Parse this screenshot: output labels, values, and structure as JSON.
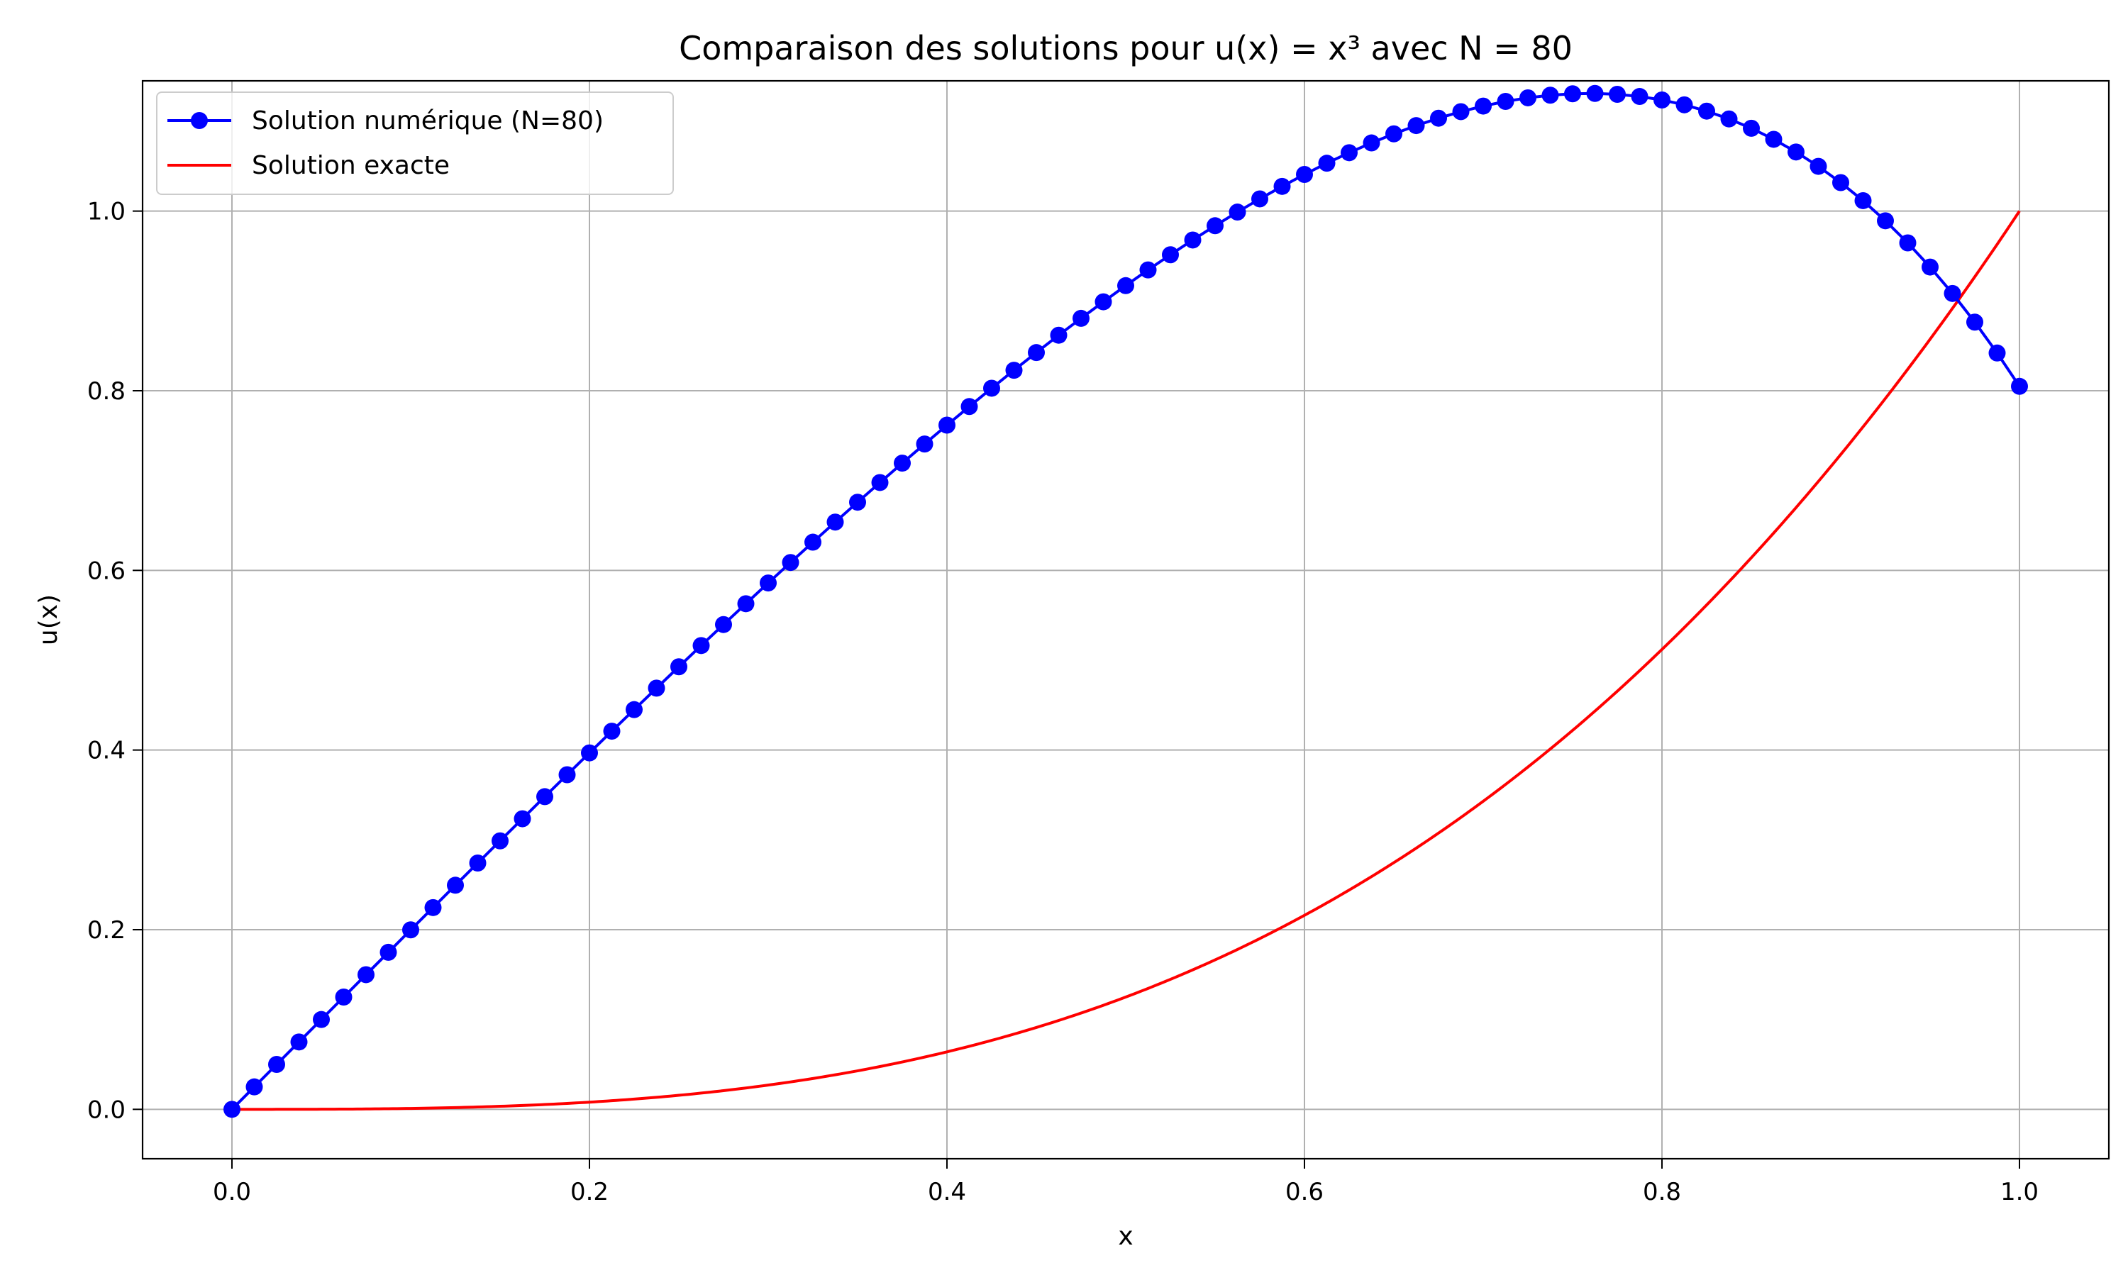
{
  "chart_data": {
    "type": "line",
    "title": "Comparaison des solutions pour u(x) = x³ avec N = 80",
    "xlabel": "x",
    "ylabel": "u(x)",
    "xlim": [
      -0.05,
      1.05
    ],
    "ylim": [
      -0.055,
      1.145
    ],
    "xticks": [
      0.0,
      0.2,
      0.4,
      0.6,
      0.8,
      1.0
    ],
    "xtick_labels": [
      "0.0",
      "0.2",
      "0.4",
      "0.6",
      "0.8",
      "1.0"
    ],
    "yticks": [
      0.0,
      0.2,
      0.4,
      0.6,
      0.8,
      1.0
    ],
    "ytick_labels": [
      "0.0",
      "0.2",
      "0.4",
      "0.6",
      "0.8",
      "1.0"
    ],
    "grid": true,
    "legend_position": "top-left",
    "series": [
      {
        "name": "Solution numérique (N=80)",
        "color": "#0000ff",
        "marker": "circle",
        "x": [
          0,
          0.0125,
          0.025,
          0.0375,
          0.05,
          0.0625,
          0.075,
          0.0875,
          0.1,
          0.1125,
          0.125,
          0.1375,
          0.15,
          0.1625,
          0.175,
          0.1875,
          0.2,
          0.2125,
          0.225,
          0.2375,
          0.25,
          0.2625,
          0.275,
          0.2875,
          0.3,
          0.3125,
          0.325,
          0.3375,
          0.35,
          0.3625,
          0.375,
          0.3875,
          0.4,
          0.4125,
          0.425,
          0.4375,
          0.45,
          0.4625,
          0.475,
          0.4875,
          0.5,
          0.5125,
          0.525,
          0.5375,
          0.55,
          0.5625,
          0.575,
          0.5875,
          0.6,
          0.6125,
          0.625,
          0.6375,
          0.65,
          0.6625,
          0.675,
          0.6875,
          0.7,
          0.7125,
          0.725,
          0.7375,
          0.75,
          0.7625,
          0.775,
          0.7875,
          0.8,
          0.8125,
          0.825,
          0.8375,
          0.85,
          0.8625,
          0.875,
          0.8875,
          0.9,
          0.9125,
          0.925,
          0.9375,
          0.95,
          0.9625,
          0.975,
          0.9875,
          1.0
        ],
        "y": [
          0.0,
          0.025,
          0.05,
          0.075,
          0.1,
          0.125,
          0.1499,
          0.1748,
          0.1998,
          0.2246,
          0.2495,
          0.2742,
          0.2989,
          0.3235,
          0.3481,
          0.3725,
          0.3968,
          0.421,
          0.445,
          0.4689,
          0.4927,
          0.5163,
          0.5397,
          0.5629,
          0.586,
          0.6088,
          0.6314,
          0.6538,
          0.6759,
          0.6978,
          0.7194,
          0.7407,
          0.7617,
          0.7824,
          0.8028,
          0.8228,
          0.8425,
          0.8618,
          0.8806,
          0.899,
          0.917,
          0.9345,
          0.9514,
          0.9678,
          0.9837,
          0.9989,
          1.0136,
          1.0275,
          1.0408,
          1.0533,
          1.065,
          1.0759,
          1.086,
          1.0952,
          1.1034,
          1.1107,
          1.1169,
          1.1221,
          1.1261,
          1.129,
          1.1306,
          1.131,
          1.13,
          1.1276,
          1.1237,
          1.1183,
          1.1113,
          1.1026,
          1.0922,
          1.0799,
          1.0658,
          1.0498,
          1.0317,
          1.0116,
          0.9892,
          0.9646,
          0.9377,
          0.9083,
          0.8764,
          0.842,
          0.8049
        ]
      },
      {
        "name": "Solution exacte",
        "color": "#ff0000",
        "marker": "none",
        "function": "x^3",
        "x_range": [
          0,
          1
        ]
      }
    ]
  }
}
